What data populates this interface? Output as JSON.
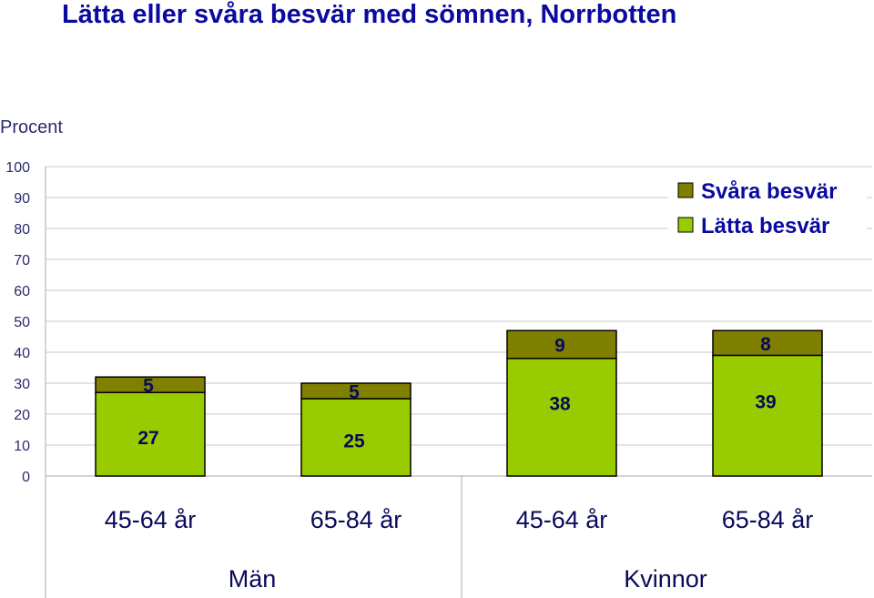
{
  "title": "Lätta eller svåra besvär med sömnen, Norrbotten",
  "ylabel": "Procent",
  "chart_data": {
    "type": "bar",
    "stacked": true,
    "title": "Lätta eller svåra besvär med sömnen, Norrbotten",
    "ylabel": "Procent",
    "ylim": [
      0,
      100
    ],
    "yticks": [
      0,
      10,
      20,
      30,
      40,
      50,
      60,
      70,
      80,
      90,
      100
    ],
    "grid": true,
    "legend_position": "top-right",
    "categories": [
      "45-64 år",
      "65-84 år",
      "45-64 år",
      "65-84 år"
    ],
    "groups": [
      {
        "label": "Män",
        "categories": [
          "45-64 år",
          "65-84 år"
        ]
      },
      {
        "label": "Kvinnor",
        "categories": [
          "45-64 år",
          "65-84 år"
        ]
      }
    ],
    "series": [
      {
        "name": "Lätta besvär",
        "color": "#99cc00",
        "values": [
          27,
          25,
          38,
          39
        ]
      },
      {
        "name": "Svåra besvär",
        "color": "#808000",
        "values": [
          5,
          5,
          9,
          8
        ]
      }
    ]
  }
}
